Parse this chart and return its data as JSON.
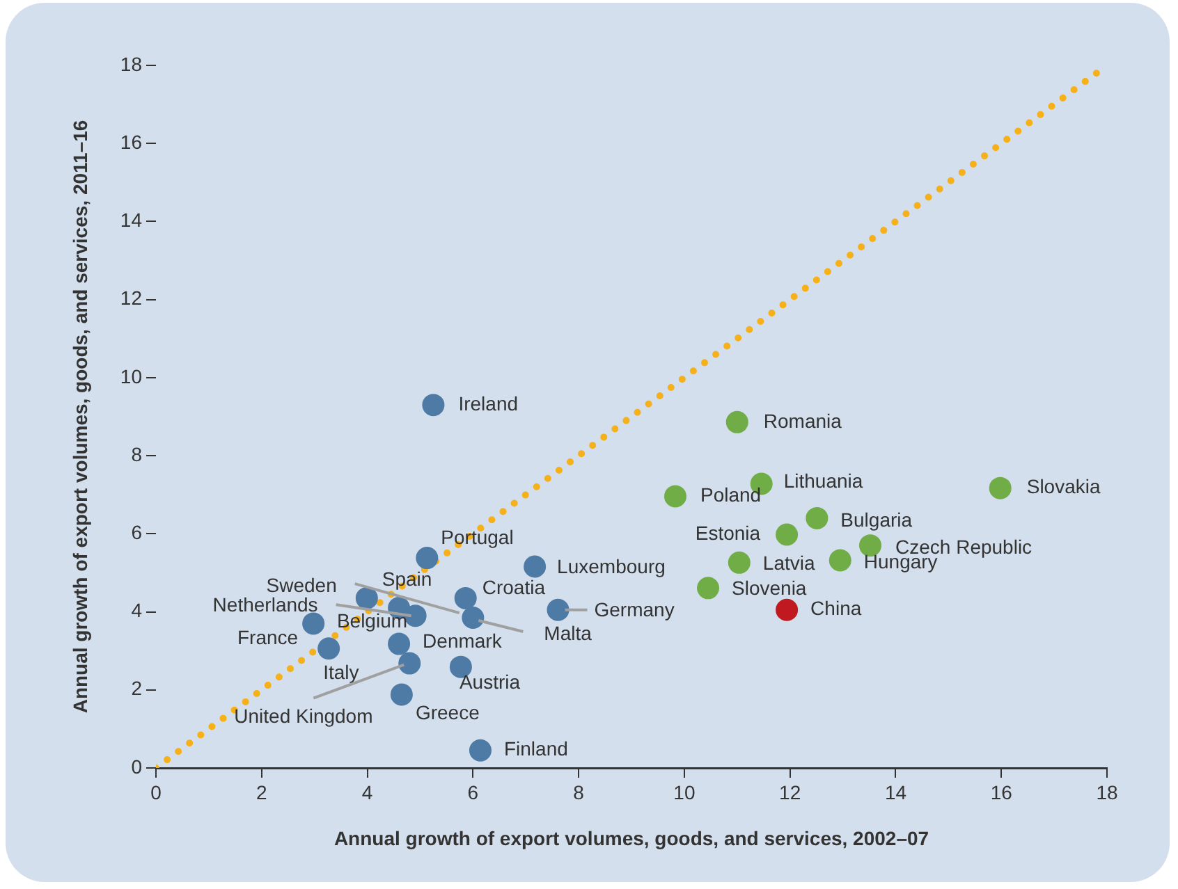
{
  "chart_data": {
    "type": "scatter",
    "xlabel": "Annual growth of export volumes, goods, and services, 2002–07",
    "ylabel": "Annual growth of export volumes, goods, and services, 2011–16",
    "xlim": [
      0,
      18
    ],
    "ylim": [
      0,
      18
    ],
    "xticks": [
      0,
      2,
      4,
      6,
      8,
      10,
      12,
      14,
      16,
      18
    ],
    "yticks": [
      0,
      2,
      4,
      6,
      8,
      10,
      12,
      14,
      16,
      18
    ],
    "marker": "circle",
    "series": [
      {
        "type": "line",
        "color": "#f5b01a",
        "line_style": "dotted",
        "marker": "none",
        "x": [
          0,
          18
        ],
        "values": [
          0,
          18
        ]
      },
      {
        "color": "#4e7aa6",
        "x": [
          5.25,
          5.13,
          7.17,
          5.86,
          3.99,
          4.6,
          4.91,
          5.9,
          6.0,
          2.98,
          3.27,
          4.6,
          4.8,
          5.77,
          4.65,
          6.14,
          7.61
        ],
        "values": [
          9.3,
          5.38,
          5.16,
          4.35,
          4.35,
          4.1,
          3.9,
          null,
          3.85,
          3.7,
          3.06,
          3.18,
          2.68,
          2.59,
          1.88,
          0.45,
          4.05
        ]
      },
      {
        "color": "#70ad47",
        "x": [
          11.0,
          11.46,
          9.83,
          15.98,
          12.51,
          11.94,
          13.52,
          11.04,
          12.95,
          10.45
        ],
        "values": [
          8.86,
          7.28,
          6.96,
          7.17,
          6.4,
          5.98,
          5.7,
          5.26,
          5.32,
          4.61
        ]
      },
      {
        "color": "#c0191f",
        "x": [
          11.94
        ],
        "values": [
          4.05
        ]
      }
    ],
    "annotations": [
      {
        "text": "Ireland",
        "x": 5.25,
        "y": 9.3
      },
      {
        "text": "Portugal",
        "x": 5.13,
        "y": 5.38
      },
      {
        "text": "Luxembourg",
        "x": 7.17,
        "y": 5.16
      },
      {
        "text": "Croatia",
        "x": 5.86,
        "y": 4.35
      },
      {
        "text": "Spain",
        "x": 3.99,
        "y": 4.35
      },
      {
        "text": "Belgium",
        "x": 4.6,
        "y": 4.1
      },
      {
        "text": "Netherlands",
        "x": 4.91,
        "y": 3.9
      },
      {
        "text": "Sweden",
        "x": 5.9,
        "y": 3.9
      },
      {
        "text": "Malta",
        "x": 6.0,
        "y": 3.85
      },
      {
        "text": "France",
        "x": 2.98,
        "y": 3.7
      },
      {
        "text": "Italy",
        "x": 3.27,
        "y": 3.06
      },
      {
        "text": "Denmark",
        "x": 4.6,
        "y": 3.18
      },
      {
        "text": "United Kingdom",
        "x": 4.8,
        "y": 2.68
      },
      {
        "text": "Austria",
        "x": 5.77,
        "y": 2.59
      },
      {
        "text": "Greece",
        "x": 4.65,
        "y": 1.88
      },
      {
        "text": "Finland",
        "x": 6.14,
        "y": 0.45
      },
      {
        "text": "Germany",
        "x": 7.61,
        "y": 4.05
      },
      {
        "text": "Romania",
        "x": 11.0,
        "y": 8.86
      },
      {
        "text": "Lithuania",
        "x": 11.46,
        "y": 7.28
      },
      {
        "text": "Poland",
        "x": 9.83,
        "y": 6.96
      },
      {
        "text": "Slovakia",
        "x": 15.98,
        "y": 7.17
      },
      {
        "text": "Bulgaria",
        "x": 12.51,
        "y": 6.4
      },
      {
        "text": "Estonia",
        "x": 11.94,
        "y": 5.98
      },
      {
        "text": "Czech Republic",
        "x": 13.52,
        "y": 5.7
      },
      {
        "text": "Latvia",
        "x": 11.04,
        "y": 5.26
      },
      {
        "text": "Hungary",
        "x": 12.95,
        "y": 5.32
      },
      {
        "text": "Slovenia",
        "x": 10.45,
        "y": 4.61
      },
      {
        "text": "China",
        "x": 11.94,
        "y": 4.05
      }
    ]
  }
}
